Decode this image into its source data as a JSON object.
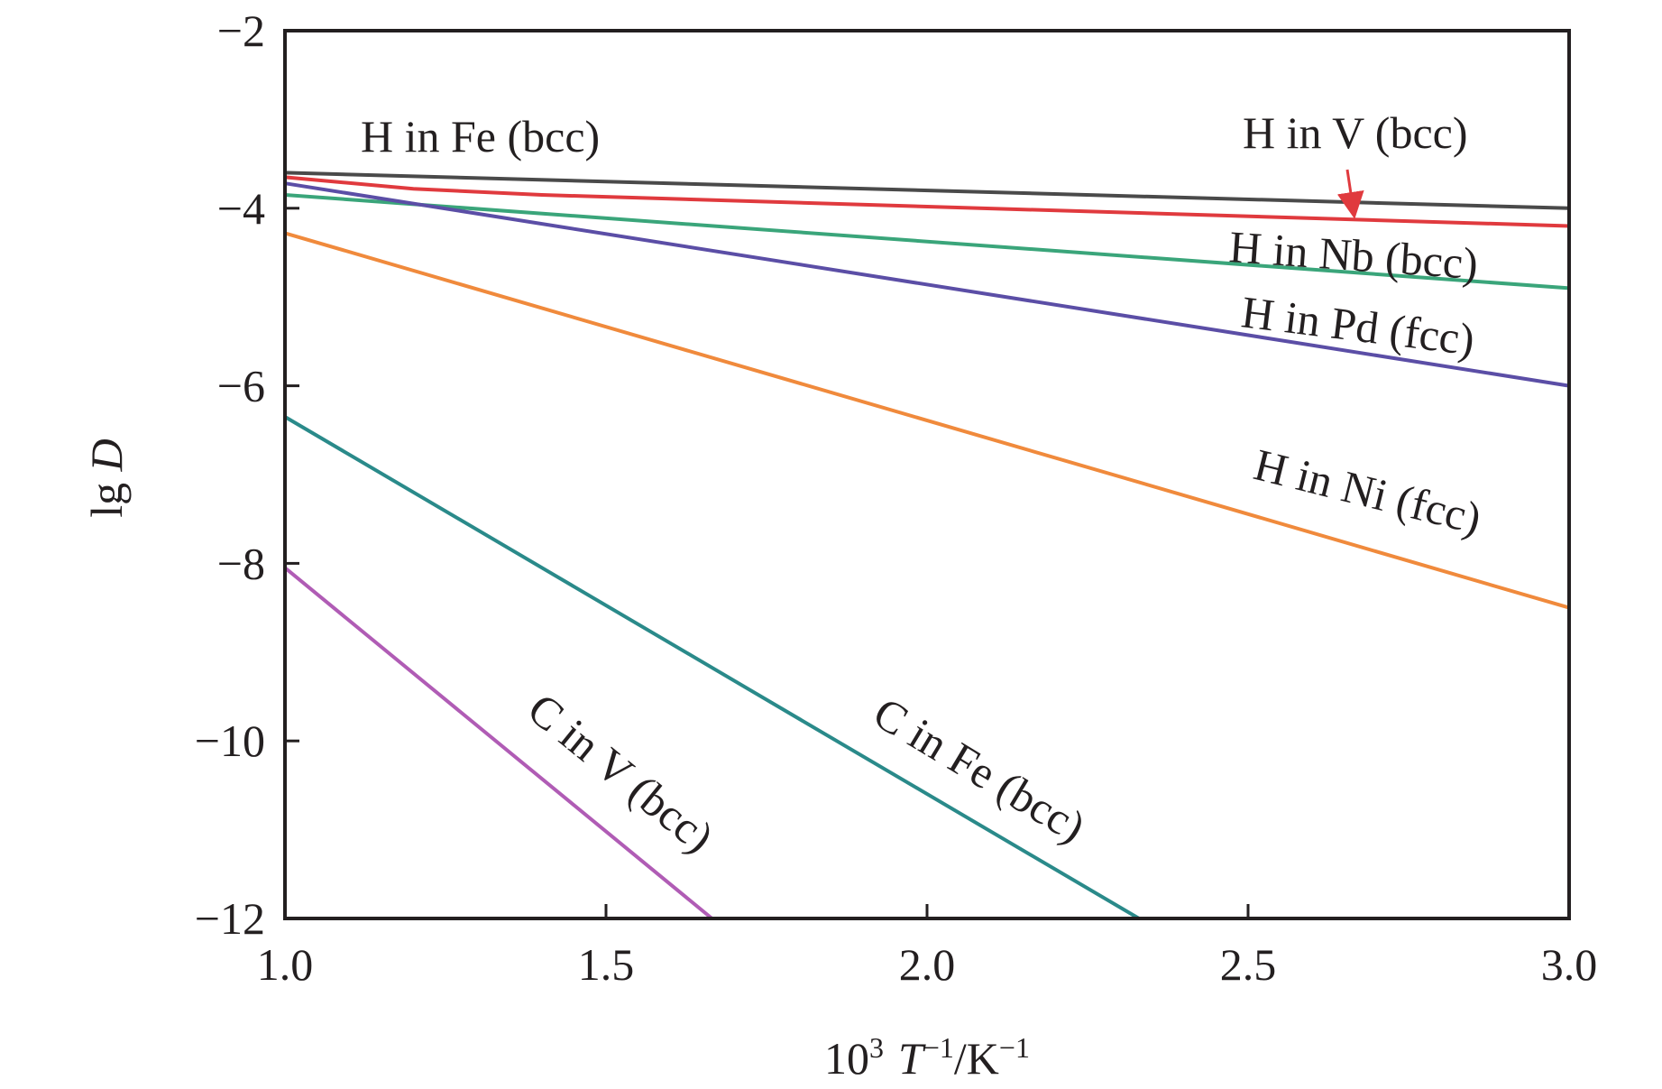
{
  "chart_data": {
    "type": "line",
    "xlabel": {
      "base": "10",
      "base_sup": "3",
      "t": "T",
      "t_sup": "−1",
      "unit": "/K",
      "unit_sup": "−1"
    },
    "ylabel": {
      "prefix": "lg ",
      "var": "D"
    },
    "xlim": [
      1.0,
      3.0
    ],
    "ylim": [
      -12,
      -2
    ],
    "x_ticks": [
      1.0,
      1.5,
      2.0,
      2.5,
      3.0
    ],
    "x_tick_labels": [
      "1.0",
      "1.5",
      "2.0",
      "2.5",
      "3.0"
    ],
    "y_ticks": [
      -2,
      -4,
      -6,
      -8,
      -10,
      -12
    ],
    "y_tick_labels": [
      "−2",
      "−4",
      "−6",
      "−8",
      "−10",
      "−12"
    ],
    "grid": false,
    "series": [
      {
        "name": "H in Fe (bcc)",
        "color": "#4a4a4a",
        "x": [
          1.0,
          3.0
        ],
        "y": [
          -3.6,
          -4.0
        ]
      },
      {
        "name": "H in V (bcc)",
        "color": "#e03a3e",
        "x": [
          1.0,
          1.2,
          1.4,
          3.0
        ],
        "y": [
          -3.65,
          -3.78,
          -3.85,
          -4.2
        ]
      },
      {
        "name": "H in Nb (bcc)",
        "color": "#3aa57a",
        "x": [
          1.0,
          3.0
        ],
        "y": [
          -3.85,
          -4.9
        ]
      },
      {
        "name": "H in Pd (fcc)",
        "color": "#5b4ea6",
        "x": [
          1.0,
          3.0
        ],
        "y": [
          -3.72,
          -6.0
        ]
      },
      {
        "name": "H in Ni (fcc)",
        "color": "#f08a3c",
        "x": [
          1.0,
          3.0
        ],
        "y": [
          -4.28,
          -8.5
        ]
      },
      {
        "name": "C in Fe (bcc)",
        "color": "#2a8a8a",
        "x": [
          1.0,
          2.33
        ],
        "y": [
          -6.35,
          -12.0
        ]
      },
      {
        "name": "C in V (bcc)",
        "color": "#b05cb5",
        "x": [
          1.0,
          1.665
        ],
        "y": [
          -8.05,
          -12.0
        ]
      }
    ],
    "annotations": [
      {
        "text": "H in Fe (bcc)",
        "series": 0
      },
      {
        "text": "H in V (bcc)",
        "series": 1,
        "arrow": true
      },
      {
        "text": "H in Nb (bcc)",
        "series": 2
      },
      {
        "text": "H in Pd (fcc)",
        "series": 3
      },
      {
        "text": "H in Ni (fcc)",
        "series": 4
      },
      {
        "text": "C in Fe (bcc)",
        "series": 5
      },
      {
        "text": "C in V (bcc)",
        "series": 6
      }
    ]
  }
}
